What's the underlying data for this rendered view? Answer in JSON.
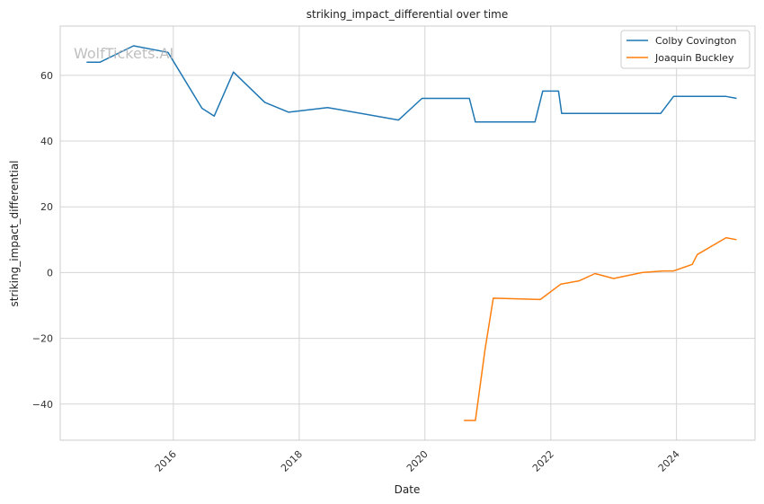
{
  "watermark": "WolfTickets.AI",
  "chart_data": {
    "type": "line",
    "title": "striking_impact_differential over time",
    "xlabel": "Date",
    "ylabel": "striking_impact_differential",
    "xlim": [
      "2014-03-15",
      "2025-04-01"
    ],
    "ylim": [
      -51,
      75
    ],
    "x_ticks": [
      "2016",
      "2018",
      "2020",
      "2022",
      "2024"
    ],
    "y_ticks": [
      -40,
      -20,
      0,
      20,
      40,
      60
    ],
    "grid": true,
    "legend_position": "top-right",
    "series": [
      {
        "name": "Colby Covington",
        "color": "#1f77b4",
        "points": [
          [
            "2014-08-15",
            64
          ],
          [
            "2014-11-01",
            64
          ],
          [
            "2015-05-15",
            69
          ],
          [
            "2015-12-01",
            67
          ],
          [
            "2016-06-15",
            50
          ],
          [
            "2016-08-25",
            47.6
          ],
          [
            "2016-12-15",
            61
          ],
          [
            "2017-06-15",
            51.8
          ],
          [
            "2017-11-01",
            48.8
          ],
          [
            "2018-06-15",
            50.2
          ],
          [
            "2019-08-01",
            46.4
          ],
          [
            "2019-12-15",
            53
          ],
          [
            "2020-09-15",
            53
          ],
          [
            "2020-10-20",
            45.8
          ],
          [
            "2021-10-01",
            45.8
          ],
          [
            "2021-11-15",
            55.2
          ],
          [
            "2022-02-15",
            55.2
          ],
          [
            "2022-03-05",
            48.4
          ],
          [
            "2023-10-01",
            48.4
          ],
          [
            "2023-12-15",
            53.6
          ],
          [
            "2024-10-15",
            53.6
          ],
          [
            "2024-12-15",
            53
          ]
        ]
      },
      {
        "name": "Joaquin Buckley",
        "color": "#ff7f0e",
        "points": [
          [
            "2020-08-15",
            -45
          ],
          [
            "2020-10-20",
            -45
          ],
          [
            "2020-12-15",
            -23.5
          ],
          [
            "2021-02-01",
            -7.8
          ],
          [
            "2021-11-01",
            -8.2
          ],
          [
            "2022-03-01",
            -3.5
          ],
          [
            "2022-06-15",
            -2.5
          ],
          [
            "2022-09-15",
            -0.3
          ],
          [
            "2023-01-01",
            -1.8
          ],
          [
            "2023-06-15",
            0
          ],
          [
            "2023-10-15",
            0.5
          ],
          [
            "2023-12-15",
            0.5
          ],
          [
            "2024-04-01",
            2.5
          ],
          [
            "2024-05-01",
            5.5
          ],
          [
            "2024-10-15",
            10.6
          ],
          [
            "2024-12-15",
            10
          ]
        ]
      }
    ]
  }
}
